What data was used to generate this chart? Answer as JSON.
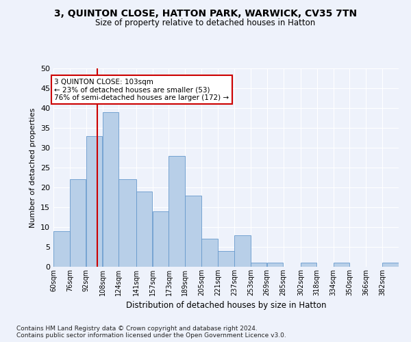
{
  "title1": "3, QUINTON CLOSE, HATTON PARK, WARWICK, CV35 7TN",
  "title2": "Size of property relative to detached houses in Hatton",
  "xlabel": "Distribution of detached houses by size in Hatton",
  "ylabel": "Number of detached properties",
  "bar_values": [
    9,
    22,
    33,
    39,
    22,
    19,
    14,
    28,
    18,
    7,
    4,
    8,
    1,
    1,
    0,
    1,
    0,
    1,
    0,
    0,
    1
  ],
  "bin_labels": [
    "60sqm",
    "76sqm",
    "92sqm",
    "108sqm",
    "124sqm",
    "141sqm",
    "157sqm",
    "173sqm",
    "189sqm",
    "205sqm",
    "221sqm",
    "237sqm",
    "253sqm",
    "269sqm",
    "285sqm",
    "302sqm",
    "318sqm",
    "334sqm",
    "350sqm",
    "366sqm",
    "382sqm"
  ],
  "bar_edges": [
    60,
    76,
    92,
    108,
    124,
    141,
    157,
    173,
    189,
    205,
    221,
    237,
    253,
    269,
    285,
    302,
    318,
    334,
    350,
    366,
    382,
    398
  ],
  "property_size": 103,
  "bar_color": "#b8cfe8",
  "bar_edge_color": "#6699cc",
  "vline_color": "#cc0000",
  "annotation_text": "3 QUINTON CLOSE: 103sqm\n← 23% of detached houses are smaller (53)\n76% of semi-detached houses are larger (172) →",
  "annotation_box_edge": "#cc0000",
  "ylim": [
    0,
    50
  ],
  "yticks": [
    0,
    5,
    10,
    15,
    20,
    25,
    30,
    35,
    40,
    45,
    50
  ],
  "footnote1": "Contains HM Land Registry data © Crown copyright and database right 2024.",
  "footnote2": "Contains public sector information licensed under the Open Government Licence v3.0.",
  "background_color": "#eef2fb",
  "fig_width": 6.0,
  "fig_height": 5.0,
  "dpi": 100
}
